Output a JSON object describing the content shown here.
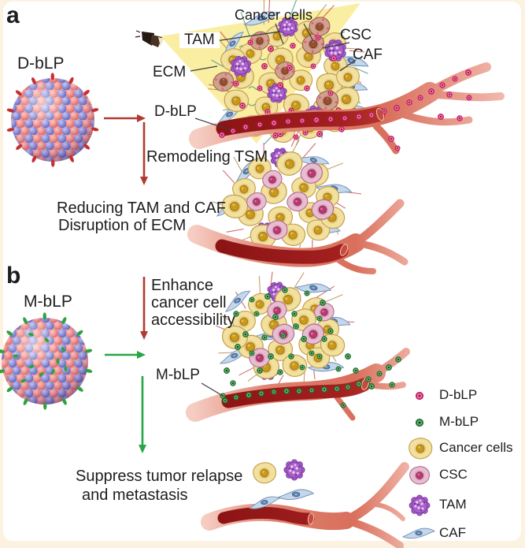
{
  "panel_a": {
    "tag": "a",
    "particle_label": "D-bLP",
    "labels": {
      "cancer_cells": "Cancer cells",
      "tam": "TAM",
      "ecm": "ECM",
      "csc": "CSC",
      "caf": "CAF",
      "dblp_vessel": "D-bLP"
    },
    "process_label": "Remodeling TSM",
    "outcome_line1": "Reducing TAM and CAF",
    "outcome_line2": "Disruption of ECM"
  },
  "panel_b": {
    "tag": "b",
    "particle_label": "M-bLP",
    "process_line1": "Enhance",
    "process_line2": "cancer cell",
    "process_line3": "accessibility",
    "vessel_label": "M-bLP",
    "outcome_line1": "Suppress tumor relapse",
    "outcome_line2": "and metastasis"
  },
  "legend": {
    "items": [
      {
        "icon": "dblp-dot-icon",
        "label": "D-bLP"
      },
      {
        "icon": "mblp-dot-icon",
        "label": "M-bLP"
      },
      {
        "icon": "cancer-cell-icon",
        "label": "Cancer cells"
      },
      {
        "icon": "csc-cell-icon",
        "label": "CSC"
      },
      {
        "icon": "tam-cell-icon",
        "label": "TAM"
      },
      {
        "icon": "caf-cell-icon",
        "label": "CAF"
      }
    ]
  },
  "colors": {
    "arrow_red": "#b03b30",
    "arrow_green": "#26a647",
    "dblp_pink": "#e8468a",
    "mblp_green": "#2e8b3d",
    "cancer_cell_yellow": "#f2e09f",
    "csc_pink": "#e6bed0",
    "tam_purple": "#a95fc9",
    "caf_blue": "#c5d7ea",
    "vessel_red": "#9c1b1b",
    "beam_yellow": "#f6e77d",
    "frame_cream": "#fcf2e1"
  }
}
